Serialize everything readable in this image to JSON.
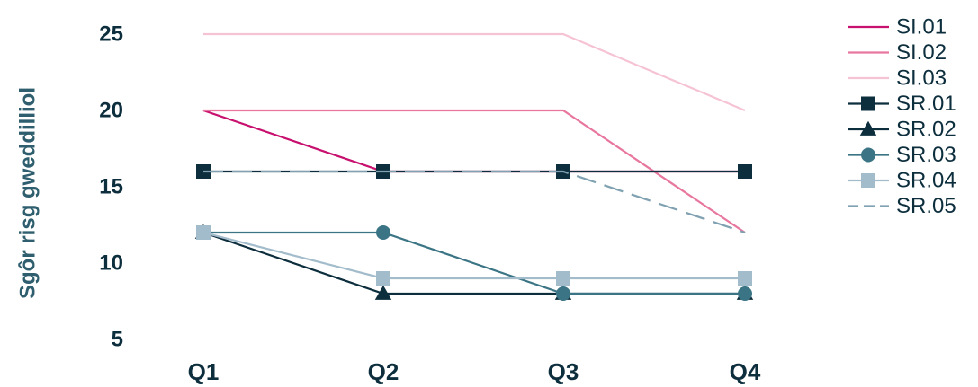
{
  "chart_data": {
    "type": "line",
    "title": "",
    "xlabel": "",
    "ylabel": "Sgôr risg gweddilliol",
    "categories": [
      "Q1",
      "Q2",
      "Q3",
      "Q4"
    ],
    "ylim": [
      5,
      25
    ],
    "yticks": [
      5,
      10,
      15,
      20,
      25
    ],
    "grid": false,
    "legend_position": "right",
    "series": [
      {
        "name": "SI.01",
        "values": [
          20,
          16,
          16,
          16
        ],
        "color": "#c8106e",
        "marker": "none",
        "dash": "solid"
      },
      {
        "name": "SI.02",
        "values": [
          20,
          20,
          20,
          12
        ],
        "color": "#e8779f",
        "marker": "none",
        "dash": "solid"
      },
      {
        "name": "SI.03",
        "values": [
          25,
          25,
          25,
          20
        ],
        "color": "#f6c3d5",
        "marker": "none",
        "dash": "solid"
      },
      {
        "name": "SR.01",
        "values": [
          16,
          16,
          16,
          16
        ],
        "color": "#0d2e3d",
        "marker": "square",
        "dash": "solid"
      },
      {
        "name": "SR.02",
        "values": [
          12,
          8,
          8,
          8
        ],
        "color": "#0d2e3d",
        "marker": "triangle",
        "dash": "solid"
      },
      {
        "name": "SR.03",
        "values": [
          12,
          12,
          8,
          8
        ],
        "color": "#3b7585",
        "marker": "circle",
        "dash": "solid"
      },
      {
        "name": "SR.04",
        "values": [
          12,
          9,
          9,
          9
        ],
        "color": "#a3bccb",
        "marker": "square",
        "dash": "solid"
      },
      {
        "name": "SR.05",
        "values": [
          16,
          16,
          16,
          12
        ],
        "color": "#7fa1b1",
        "marker": "none",
        "dash": "dashed"
      }
    ]
  }
}
